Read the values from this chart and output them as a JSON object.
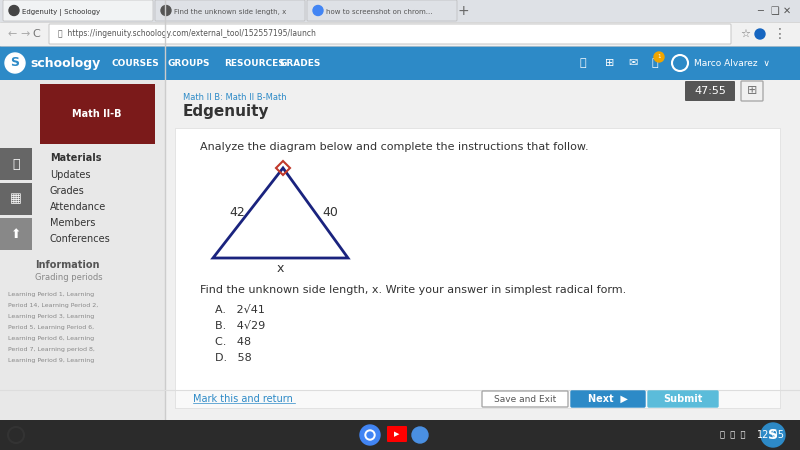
{
  "bg_color": "#3a3a3a",
  "schoology_bar_color": "#2d8ac7",
  "title_text": "Analyze the diagram below and complete the instructions that follow.",
  "triangle_left_label": "42",
  "triangle_right_label": "40",
  "triangle_bottom_label": "x",
  "triangle_color": "#1a237e",
  "right_angle_color": "#c0392b",
  "question_text": "Find the unknown side length, x. Write your answer in simplest radical form.",
  "choice_A": "A.   2√41",
  "choice_B": "B.   4√29",
  "choice_C": "C.   48",
  "choice_D": "D.   58",
  "btn_save_text": "Save and Exit",
  "btn_next_text": "Next",
  "btn_submit_text": "Submit",
  "mark_return_text": "Mark this and return",
  "schoology_logo_text": "schoology",
  "nav_items": [
    "COURSES",
    "GROUPS",
    "RESOURCES",
    "GRADES"
  ],
  "breadcrumb": "Math II B: Math II B-Math",
  "edgenuity_title": "Edgenuity",
  "url_text": "https://ingenuity.schoology.com/external_tool/152557195/launch",
  "tab1": "Edgenuity | Schoology",
  "tab2": "Find the unknown side length, x",
  "tab3": "how to screenshot on chrom...",
  "timer_text": "47:55",
  "user_name": "Marco Alvarez"
}
